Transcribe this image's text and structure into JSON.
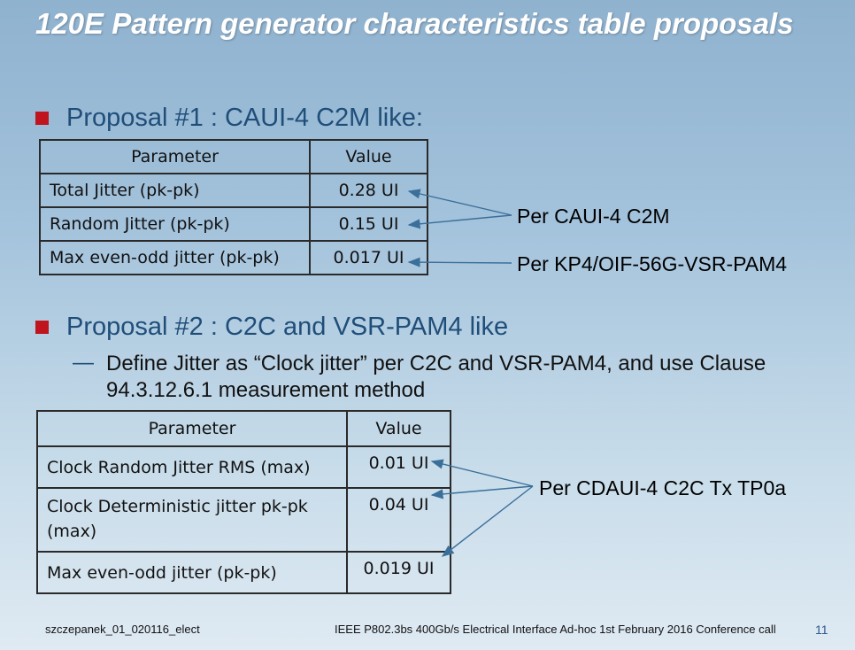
{
  "title": "120E Pattern generator characteristics table proposals",
  "proposal1": {
    "heading": "Proposal #1 : CAUI-4 C2M like:",
    "table": {
      "headers": [
        "Parameter",
        "Value"
      ],
      "rows": [
        {
          "param": "Total Jitter (pk-pk)",
          "value": "0.28 UI"
        },
        {
          "param": "Random Jitter (pk-pk)",
          "value": "0.15 UI"
        },
        {
          "param": "Max even-odd jitter (pk-pk)",
          "value": "0.017 UI"
        }
      ]
    },
    "annotations": [
      "Per CAUI-4 C2M",
      "Per KP4/OIF-56G-VSR-PAM4"
    ]
  },
  "proposal2": {
    "heading": "Proposal #2 : C2C and VSR-PAM4 like",
    "subbullet": "Define Jitter as “Clock jitter” per C2C and VSR-PAM4, and use Clause 94.3.12.6.1 measurement method",
    "table": {
      "headers": [
        "Parameter",
        "Value"
      ],
      "rows": [
        {
          "param": "Clock Random Jitter RMS (max)",
          "value": "0.01 UI"
        },
        {
          "param": "Clock Deterministic jitter pk-pk (max)",
          "value": "0.04 UI"
        },
        {
          "param": "Max even-odd jitter (pk-pk)",
          "value": "0.019 UI"
        }
      ]
    },
    "annotation": "Per CDAUI-4 C2C Tx TP0a"
  },
  "footer": {
    "left": "szczepanek_01_020116_elect",
    "middle": "IEEE P802.3bs 400Gb/s Electrical Interface Ad-hoc 1st February 2016 Conference call",
    "page": "11"
  },
  "colors": {
    "title": "#ffffff",
    "bullet": "#c0141f",
    "heading": "#1f4e79",
    "arrow": "#3a6f9a"
  }
}
